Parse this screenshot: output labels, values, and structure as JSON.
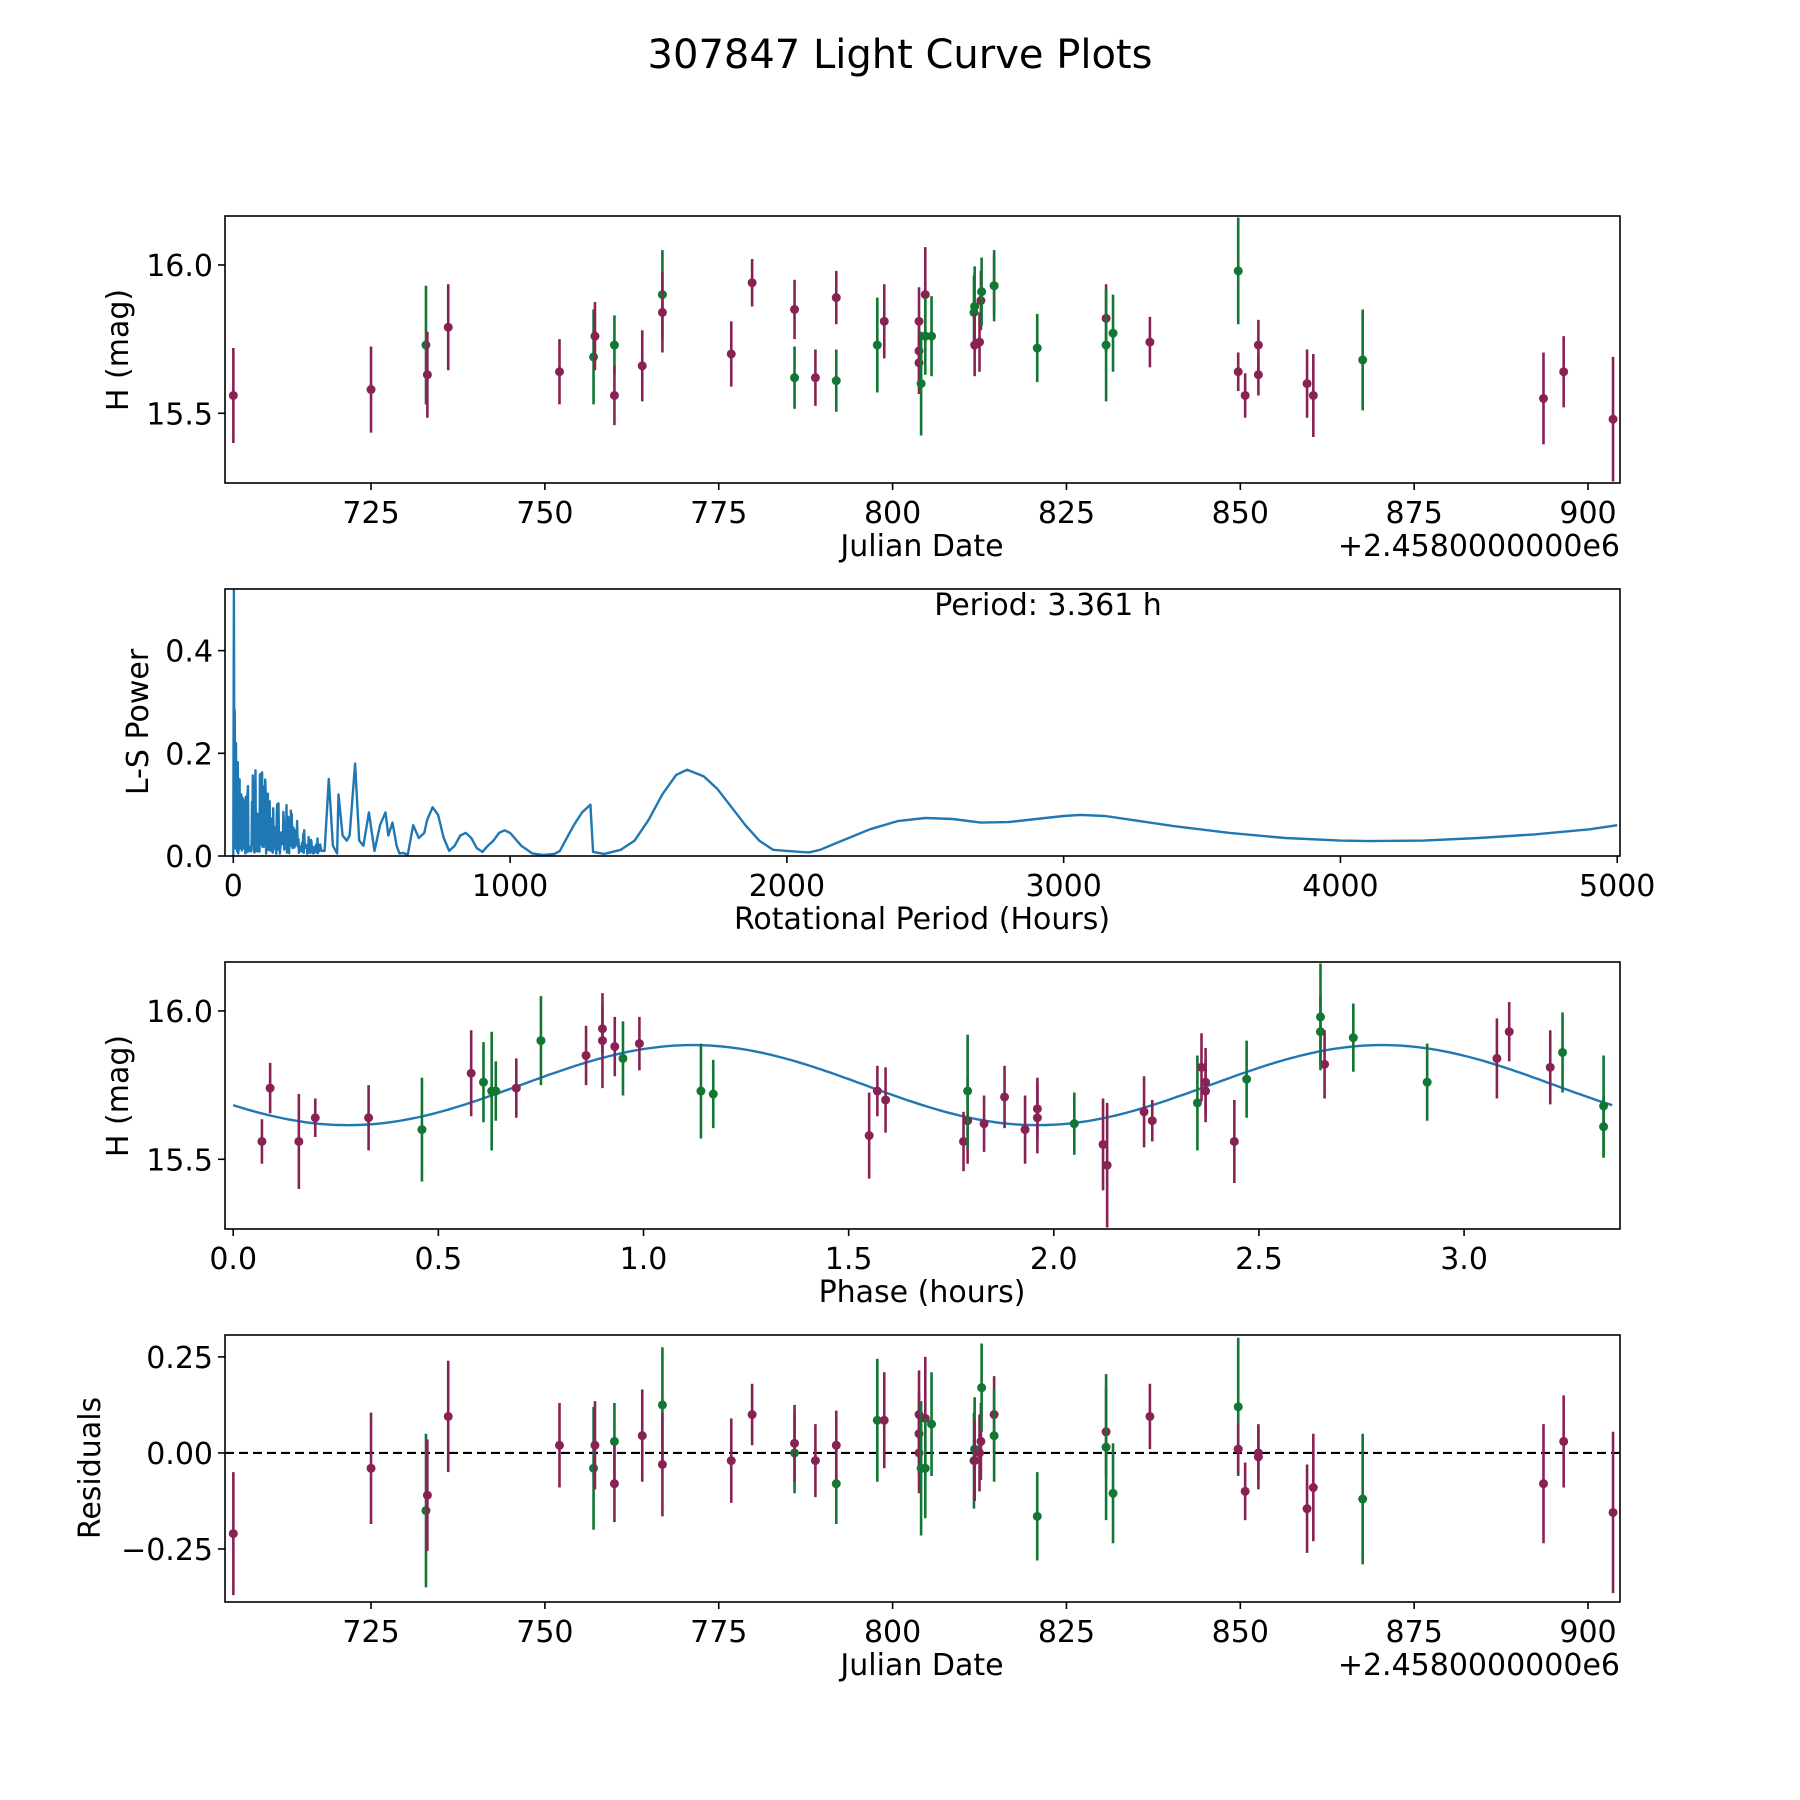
{
  "title": "307847 Light Curve Plots",
  "colors": {
    "filter_a": "#882255",
    "filter_b": "#117733",
    "periodogram_line": "#1f77b4",
    "model_curve": "#1f77b4",
    "zero_line": "#000000"
  },
  "chart_data": [
    {
      "id": "light-curve",
      "type": "scatter",
      "title": "",
      "xlabel": "Julian Date",
      "ylabel": "H (mag)",
      "x_offset_label": "+2.4580000000e6",
      "xlim": [
        704.0,
        904.6
      ],
      "ylim": [
        15.265,
        16.165
      ],
      "y_inverted": false,
      "xticks": [
        725,
        750,
        775,
        800,
        825,
        850,
        875,
        900
      ],
      "xtick_labels": [
        "725",
        "750",
        "775",
        "800",
        "825",
        "850",
        "875",
        "900"
      ],
      "yticks": [
        15.5,
        16.0
      ],
      "ytick_labels": [
        "15.5",
        "16.0"
      ],
      "error_bars": true,
      "series_ref": "observations (jd, mag, err)"
    },
    {
      "id": "periodogram",
      "type": "line",
      "xlabel": "Rotational Period (Hours)",
      "ylabel": "L-S Power",
      "xlim": [
        -30,
        5010
      ],
      "ylim": [
        0,
        0.52
      ],
      "xticks": [
        0,
        1000,
        2000,
        3000,
        4000,
        5000
      ],
      "xtick_labels": [
        "0",
        "1000",
        "2000",
        "3000",
        "4000",
        "5000"
      ],
      "yticks": [
        0.0,
        0.2,
        0.4
      ],
      "ytick_labels": [
        "0.0",
        "0.2",
        "0.4"
      ],
      "annotation": "Period: 3.361 h",
      "smooth_curve": {
        "x": [
          1300,
          1340,
          1400,
          1450,
          1500,
          1550,
          1600,
          1640,
          1700,
          1750,
          1800,
          1850,
          1900,
          1950,
          2000,
          2050,
          2080,
          2120,
          2200,
          2300,
          2400,
          2500,
          2600,
          2700,
          2800,
          2900,
          3000,
          3060,
          3150,
          3250,
          3400,
          3600,
          3800,
          4000,
          4100,
          4300,
          4500,
          4700,
          4900,
          5000
        ],
        "y": [
          0.008,
          0.004,
          0.012,
          0.03,
          0.07,
          0.12,
          0.158,
          0.168,
          0.155,
          0.13,
          0.095,
          0.06,
          0.03,
          0.012,
          0.01,
          0.008,
          0.007,
          0.012,
          0.03,
          0.052,
          0.068,
          0.074,
          0.072,
          0.065,
          0.066,
          0.072,
          0.078,
          0.08,
          0.078,
          0.07,
          0.058,
          0.045,
          0.035,
          0.03,
          0.029,
          0.03,
          0.035,
          0.042,
          0.052,
          0.06
        ]
      },
      "wiggly_region": {
        "x": [
          330,
          345,
          360,
          375,
          380,
          395,
          410,
          420,
          440,
          455,
          470,
          490,
          510,
          530,
          550,
          560,
          575,
          590,
          600,
          615,
          630,
          650,
          670,
          690,
          700,
          720,
          740,
          760,
          780,
          800,
          820,
          840,
          860,
          880,
          900,
          920,
          940,
          960,
          980,
          1000,
          1040,
          1080,
          1120,
          1160,
          1180,
          1200,
          1230,
          1260,
          1290
        ],
        "y": [
          0.01,
          0.15,
          0.02,
          0.005,
          0.12,
          0.04,
          0.03,
          0.04,
          0.18,
          0.03,
          0.02,
          0.085,
          0.01,
          0.06,
          0.085,
          0.04,
          0.065,
          0.02,
          0.005,
          0.006,
          0.002,
          0.06,
          0.035,
          0.045,
          0.07,
          0.095,
          0.08,
          0.035,
          0.01,
          0.02,
          0.04,
          0.045,
          0.035,
          0.015,
          0.008,
          0.02,
          0.03,
          0.045,
          0.05,
          0.045,
          0.02,
          0.005,
          0.002,
          0.004,
          0.01,
          0.03,
          0.06,
          0.085,
          0.1
        ]
      },
      "noisy_region": {
        "x_range": [
          0,
          320
        ],
        "peak_x": 2,
        "peak_y": 0.52,
        "envelope": [
          [
            5,
            0.3
          ],
          [
            15,
            0.23
          ],
          [
            40,
            0.22
          ],
          [
            70,
            0.18
          ],
          [
            100,
            0.17
          ],
          [
            150,
            0.13
          ],
          [
            200,
            0.1
          ],
          [
            260,
            0.05
          ],
          [
            320,
            0.03
          ]
        ]
      }
    },
    {
      "id": "phase-folded",
      "type": "scatter",
      "xlabel": "Phase (hours)",
      "ylabel": "H (mag)",
      "xlim": [
        -0.02,
        3.38
      ],
      "ylim": [
        15.265,
        16.165
      ],
      "xticks": [
        0.0,
        0.5,
        1.0,
        1.5,
        2.0,
        2.5,
        3.0
      ],
      "xtick_labels": [
        "0.0",
        "0.5",
        "1.0",
        "1.5",
        "2.0",
        "2.5",
        "3.0"
      ],
      "yticks": [
        15.5,
        16.0
      ],
      "ytick_labels": [
        "15.5",
        "16.0"
      ],
      "model": {
        "type": "sinusoid-2harmonic",
        "period_hours": 3.361,
        "description": "mean 15.75, semi-amplitude 0.135, maxima near phase 1.12 and 2.80 h, minima near 0.29 and 1.96 h"
      }
    },
    {
      "id": "residuals",
      "type": "scatter",
      "xlabel": "Julian Date",
      "ylabel": "Residuals",
      "x_offset_label": "+2.4580000000e6",
      "xlim": [
        704.0,
        904.6
      ],
      "ylim": [
        -0.388,
        0.307
      ],
      "xticks": [
        725,
        750,
        775,
        800,
        825,
        850,
        875,
        900
      ],
      "xtick_labels": [
        "725",
        "750",
        "775",
        "800",
        "825",
        "850",
        "875",
        "900"
      ],
      "yticks": [
        -0.25,
        0.0,
        0.25
      ],
      "ytick_labels": [
        "−0.25",
        "0.00",
        "0.25"
      ],
      "reference_line": 0.0
    }
  ],
  "observations": [
    {
      "jd": 705.2,
      "mag": 15.56,
      "err": 0.16,
      "phase": 0.16,
      "res": -0.21,
      "f": "a"
    },
    {
      "jd": 725.0,
      "mag": 15.58,
      "err": 0.145,
      "phase": 1.55,
      "res": -0.04,
      "f": "a"
    },
    {
      "jd": 732.9,
      "mag": 15.73,
      "err": 0.2,
      "phase": 0.63,
      "res": -0.15,
      "f": "b"
    },
    {
      "jd": 733.1,
      "mag": 15.63,
      "err": 0.145,
      "phase": 1.79,
      "res": -0.11,
      "f": "a"
    },
    {
      "jd": 736.1,
      "mag": 15.79,
      "err": 0.145,
      "phase": 0.58,
      "res": 0.095,
      "f": "a"
    },
    {
      "jd": 752.1,
      "mag": 15.64,
      "err": 0.11,
      "phase": 0.33,
      "res": 0.02,
      "f": "a"
    },
    {
      "jd": 757.0,
      "mag": 15.69,
      "err": 0.16,
      "phase": 2.35,
      "res": -0.04,
      "f": "b"
    },
    {
      "jd": 757.2,
      "mag": 15.76,
      "err": 0.115,
      "phase": 2.37,
      "res": 0.02,
      "f": "a"
    },
    {
      "jd": 760.0,
      "mag": 15.73,
      "err": 0.1,
      "phase": 0.64,
      "res": 0.03,
      "f": "b"
    },
    {
      "jd": 760.0,
      "mag": 15.56,
      "err": 0.1,
      "phase": 1.78,
      "res": -0.08,
      "f": "a"
    },
    {
      "jd": 764.0,
      "mag": 15.66,
      "err": 0.12,
      "phase": 2.22,
      "res": 0.045,
      "f": "a"
    },
    {
      "jd": 766.9,
      "mag": 15.9,
      "err": 0.15,
      "phase": 0.75,
      "res": 0.125,
      "f": "b"
    },
    {
      "jd": 766.9,
      "mag": 15.84,
      "err": 0.135,
      "phase": 3.08,
      "res": -0.03,
      "f": "a"
    },
    {
      "jd": 776.8,
      "mag": 15.7,
      "err": 0.11,
      "phase": 1.59,
      "res": -0.02,
      "f": "a"
    },
    {
      "jd": 779.8,
      "mag": 15.94,
      "err": 0.08,
      "phase": 0.9,
      "res": 0.1,
      "f": "a"
    },
    {
      "jd": 785.9,
      "mag": 15.62,
      "err": 0.105,
      "phase": 2.05,
      "res": 0.0,
      "f": "b"
    },
    {
      "jd": 785.9,
      "mag": 15.85,
      "err": 0.1,
      "phase": 0.86,
      "res": 0.025,
      "f": "a"
    },
    {
      "jd": 788.9,
      "mag": 15.62,
      "err": 0.095,
      "phase": 1.83,
      "res": -0.02,
      "f": "a"
    },
    {
      "jd": 791.9,
      "mag": 15.61,
      "err": 0.105,
      "phase": 3.34,
      "res": -0.08,
      "f": "b"
    },
    {
      "jd": 791.9,
      "mag": 15.89,
      "err": 0.09,
      "phase": 0.99,
      "res": 0.02,
      "f": "a"
    },
    {
      "jd": 797.8,
      "mag": 15.73,
      "err": 0.16,
      "phase": 1.14,
      "res": 0.085,
      "f": "b"
    },
    {
      "jd": 798.8,
      "mag": 15.81,
      "err": 0.125,
      "phase": 3.21,
      "res": 0.085,
      "f": "a"
    },
    {
      "jd": 803.8,
      "mag": 15.81,
      "err": 0.115,
      "phase": 2.36,
      "res": 0.1,
      "f": "a"
    },
    {
      "jd": 803.8,
      "mag": 15.71,
      "err": 0.105,
      "phase": 1.88,
      "res": 0.05,
      "f": "a"
    },
    {
      "jd": 803.8,
      "mag": 15.67,
      "err": 0.105,
      "phase": 1.96,
      "res": 0.0,
      "f": "a"
    },
    {
      "jd": 804.1,
      "mag": 15.6,
      "err": 0.175,
      "phase": 0.46,
      "res": -0.04,
      "f": "b"
    },
    {
      "jd": 804.7,
      "mag": 15.9,
      "err": 0.16,
      "phase": 0.9,
      "res": 0.09,
      "f": "a"
    },
    {
      "jd": 804.7,
      "mag": 15.76,
      "err": 0.13,
      "phase": 2.91,
      "res": -0.04,
      "f": "b"
    },
    {
      "jd": 805.6,
      "mag": 15.76,
      "err": 0.135,
      "phase": 0.61,
      "res": 0.075,
      "f": "b"
    },
    {
      "jd": 811.7,
      "mag": 15.84,
      "err": 0.125,
      "phase": 0.95,
      "res": -0.02,
      "f": "b"
    },
    {
      "jd": 811.8,
      "mag": 15.86,
      "err": 0.135,
      "phase": 3.24,
      "res": 0.01,
      "f": "b"
    },
    {
      "jd": 811.8,
      "mag": 15.73,
      "err": 0.105,
      "phase": 2.37,
      "res": -0.02,
      "f": "a"
    },
    {
      "jd": 812.5,
      "mag": 15.74,
      "err": 0.1,
      "phase": 0.69,
      "res": 0.0,
      "f": "a"
    },
    {
      "jd": 812.7,
      "mag": 15.88,
      "err": 0.1,
      "phase": 0.93,
      "res": 0.03,
      "f": "a"
    },
    {
      "jd": 812.8,
      "mag": 15.91,
      "err": 0.115,
      "phase": 2.73,
      "res": 0.17,
      "f": "b"
    },
    {
      "jd": 814.6,
      "mag": 15.93,
      "err": 0.1,
      "phase": 3.11,
      "res": 0.1,
      "f": "a"
    },
    {
      "jd": 814.6,
      "mag": 15.93,
      "err": 0.12,
      "phase": 2.65,
      "res": 0.045,
      "f": "b"
    },
    {
      "jd": 820.8,
      "mag": 15.72,
      "err": 0.115,
      "phase": 1.17,
      "res": -0.165,
      "f": "b"
    },
    {
      "jd": 830.7,
      "mag": 15.82,
      "err": 0.115,
      "phase": 2.66,
      "res": 0.055,
      "f": "a"
    },
    {
      "jd": 830.7,
      "mag": 15.73,
      "err": 0.19,
      "phase": 1.79,
      "res": 0.015,
      "f": "b"
    },
    {
      "jd": 831.7,
      "mag": 15.77,
      "err": 0.13,
      "phase": 2.47,
      "res": -0.105,
      "f": "b"
    },
    {
      "jd": 837.0,
      "mag": 15.74,
      "err": 0.085,
      "phase": 0.09,
      "res": 0.095,
      "f": "a"
    },
    {
      "jd": 849.7,
      "mag": 15.98,
      "err": 0.18,
      "phase": 2.65,
      "res": 0.12,
      "f": "b"
    },
    {
      "jd": 849.7,
      "mag": 15.64,
      "err": 0.065,
      "phase": 0.2,
      "res": 0.01,
      "f": "a"
    },
    {
      "jd": 850.7,
      "mag": 15.56,
      "err": 0.075,
      "phase": 0.07,
      "res": -0.1,
      "f": "a"
    },
    {
      "jd": 852.6,
      "mag": 15.73,
      "err": 0.085,
      "phase": 1.57,
      "res": -0.01,
      "f": "a"
    },
    {
      "jd": 852.6,
      "mag": 15.63,
      "err": 0.07,
      "phase": 2.24,
      "res": 0.0,
      "f": "a"
    },
    {
      "jd": 859.6,
      "mag": 15.6,
      "err": 0.115,
      "phase": 1.93,
      "res": -0.145,
      "f": "a"
    },
    {
      "jd": 860.5,
      "mag": 15.56,
      "err": 0.14,
      "phase": 2.44,
      "res": -0.09,
      "f": "a"
    },
    {
      "jd": 867.6,
      "mag": 15.68,
      "err": 0.17,
      "phase": 3.34,
      "res": -0.12,
      "f": "b"
    },
    {
      "jd": 893.6,
      "mag": 15.55,
      "err": 0.155,
      "phase": 2.12,
      "res": -0.08,
      "f": "a"
    },
    {
      "jd": 896.5,
      "mag": 15.64,
      "err": 0.12,
      "phase": 1.96,
      "res": 0.03,
      "f": "a"
    },
    {
      "jd": 903.6,
      "mag": 15.48,
      "err": 0.21,
      "phase": 2.13,
      "res": -0.155,
      "f": "a"
    }
  ]
}
